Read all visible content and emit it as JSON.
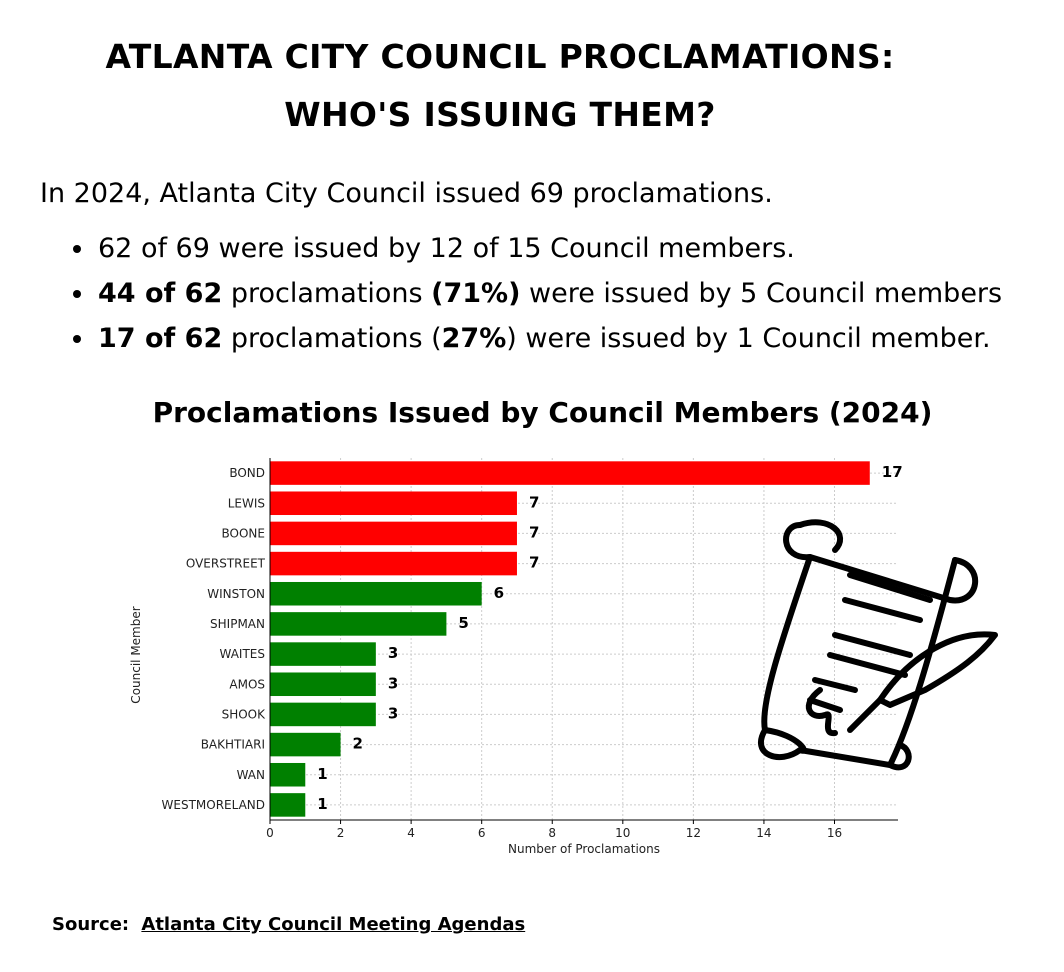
{
  "headline": {
    "line1": "ATLANTA CITY COUNCIL PROCLAMATIONS:",
    "line2": "WHO'S ISSUING THEM?"
  },
  "intro": "In 2024, Atlanta City Council issued 69 proclamations.",
  "bullets": [
    {
      "bold": "",
      "text": "62 of 69 were issued by 12 of 15 Council members."
    },
    {
      "bold": "44 of 62",
      "t1": " proclamations ",
      "bold2": "(71%)",
      "t2": " were issued by 5 Council members"
    },
    {
      "bold": "17 of 62",
      "t1": " proclamations (",
      "bold2": "27%",
      "t2": ") were issued by 1 Council member."
    }
  ],
  "chart_data": {
    "type": "bar",
    "orientation": "horizontal",
    "title": "Proclamations Issued by Council Members (2024)",
    "xlabel": "Number of Proclamations",
    "ylabel": "Council Member",
    "xlim": [
      0,
      17.8
    ],
    "xticks": [
      0,
      2,
      4,
      6,
      8,
      10,
      12,
      14,
      16
    ],
    "grid": true,
    "categories": [
      "BOND",
      "LEWIS",
      "BOONE",
      "OVERSTREET",
      "WINSTON",
      "SHIPMAN",
      "WAITES",
      "AMOS",
      "SHOOK",
      "BAKHTIARI",
      "WAN",
      "WESTMORELAND"
    ],
    "values": [
      17,
      7,
      7,
      7,
      6,
      5,
      3,
      3,
      3,
      2,
      1,
      1
    ],
    "highlight_count": 4,
    "colors": {
      "highlight": "#ff0000",
      "other": "#008000"
    }
  },
  "source": {
    "label": "Source:",
    "link_text": "Atlanta City Council Meeting Agendas"
  }
}
